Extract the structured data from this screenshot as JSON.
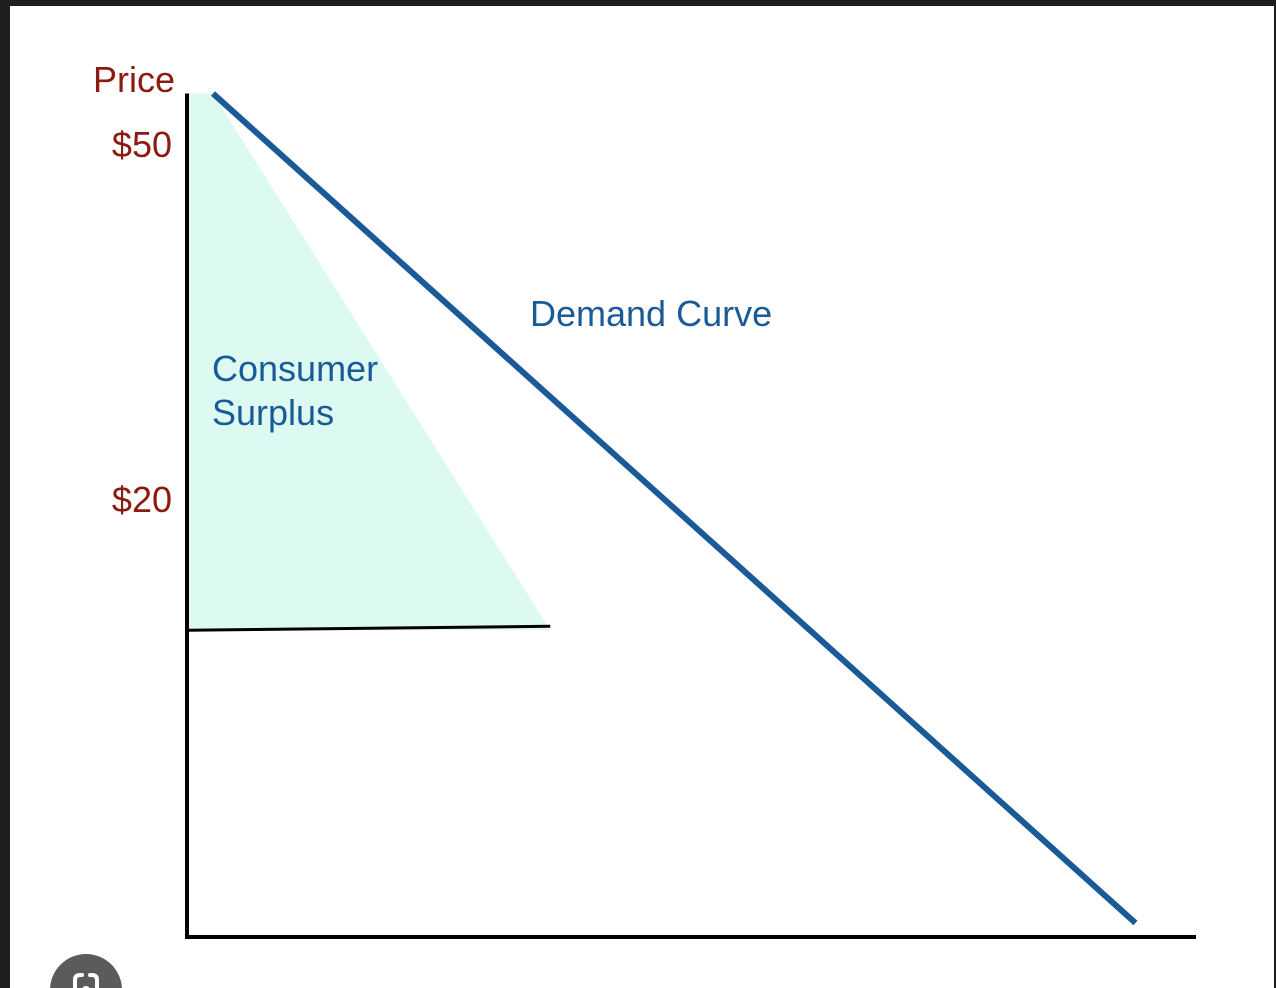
{
  "chart_data": {
    "type": "line",
    "ylabel": "Price",
    "xlabel": "",
    "series": [
      {
        "name": "Demand Curve",
        "points": [
          [
            0,
            50
          ],
          [
            36,
            20
          ],
          [
            94,
            0
          ]
        ]
      }
    ],
    "y_ticks": [
      {
        "label": "$50",
        "value": 50
      },
      {
        "label": "$20",
        "value": 20
      }
    ],
    "price_line": {
      "y": 20,
      "x_end": 36
    },
    "shaded_region": {
      "label": [
        "Consumer",
        "Surplus"
      ],
      "color": "#dcfaf2"
    },
    "ylim": [
      0,
      55
    ],
    "xlim": [
      0,
      100
    ],
    "grid": false,
    "colors": {
      "demand": "#1a5a96",
      "axis_text": "#8b1a10",
      "label_text": "#1a5a96",
      "axis": "#000000"
    }
  },
  "overlay": {
    "icon": "lens-icon"
  }
}
